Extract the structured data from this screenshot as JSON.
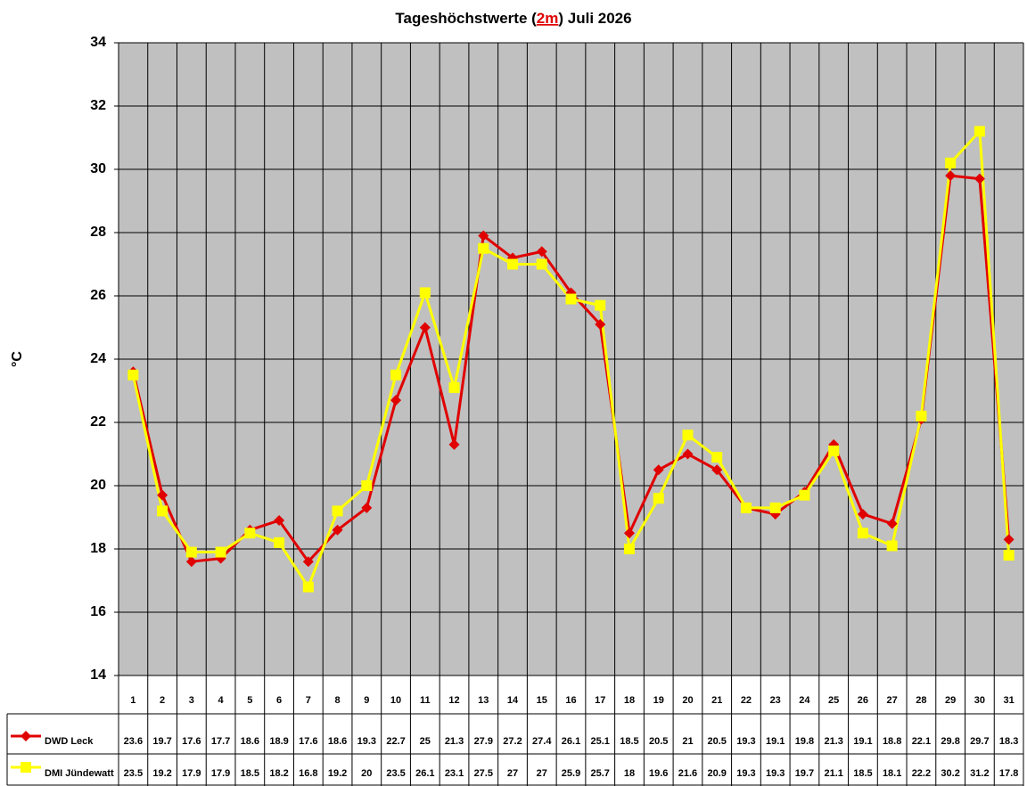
{
  "chart_data": {
    "type": "line",
    "title": [
      "Tageshöchstwerte (",
      "2m",
      ") Juli 2026"
    ],
    "y_label": "°C",
    "categories": [
      "1",
      "2",
      "3",
      "4",
      "5",
      "6",
      "7",
      "8",
      "9",
      "10",
      "11",
      "12",
      "13",
      "14",
      "15",
      "16",
      "17",
      "18",
      "19",
      "20",
      "21",
      "22",
      "23",
      "24",
      "25",
      "26",
      "27",
      "28",
      "29",
      "30",
      "31"
    ],
    "series": [
      {
        "name": "DWD Leck",
        "color": "#e00000",
        "marker": "diamond",
        "values": [
          23.6,
          19.7,
          17.6,
          17.7,
          18.6,
          18.9,
          17.6,
          18.6,
          19.3,
          22.7,
          25,
          21.3,
          27.9,
          27.2,
          27.4,
          26.1,
          25.1,
          18.5,
          20.5,
          21,
          20.5,
          19.3,
          19.1,
          19.8,
          21.3,
          19.1,
          18.8,
          22.1,
          29.8,
          29.7,
          18.3
        ]
      },
      {
        "name": "DMI Jündewatt",
        "color": "#ffff00",
        "marker": "square",
        "values": [
          23.5,
          19.2,
          17.9,
          17.9,
          18.5,
          18.2,
          16.8,
          19.2,
          20,
          23.5,
          26.1,
          23.1,
          27.5,
          27,
          27,
          25.9,
          25.7,
          18,
          19.6,
          21.6,
          20.9,
          19.3,
          19.3,
          19.7,
          21.1,
          18.5,
          18.1,
          22.2,
          30.2,
          31.2,
          17.8
        ]
      }
    ],
    "ylim": [
      14,
      34
    ],
    "yticks": [
      14,
      16,
      18,
      20,
      22,
      24,
      26,
      28,
      30,
      32,
      34
    ],
    "grid": true,
    "plot_background": "#c0c0c0"
  }
}
